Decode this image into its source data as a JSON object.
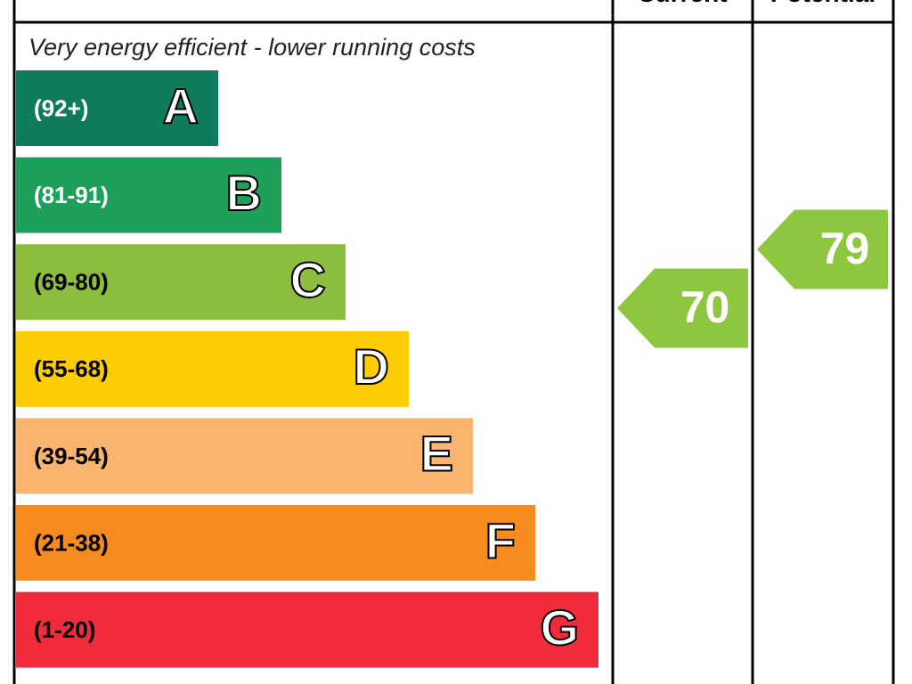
{
  "header": {
    "current": "Current",
    "potential": "Potential"
  },
  "note": "Very energy efficient - lower running costs",
  "bands": [
    {
      "range": "(92+)",
      "letter": "A",
      "color": "#0f7b5c",
      "text_color": "#ffffff"
    },
    {
      "range": "(81-91)",
      "letter": "B",
      "color": "#1ea05a",
      "text_color": "#ffffff"
    },
    {
      "range": "(69-80)",
      "letter": "C",
      "color": "#8dbd3f",
      "text_color": "#000000"
    },
    {
      "range": "(55-68)",
      "letter": "D",
      "color": "#fecc02",
      "text_color": "#000000"
    },
    {
      "range": "(39-54)",
      "letter": "E",
      "color": "#f9b46f",
      "text_color": "#000000"
    },
    {
      "range": "(21-38)",
      "letter": "F",
      "color": "#f68b1f",
      "text_color": "#000000"
    },
    {
      "range": "(1-20)",
      "letter": "G",
      "color": "#ef2b3c",
      "text_color": "#000000"
    }
  ],
  "ratings": {
    "current": 70,
    "potential": 79,
    "color": "#8dc63f"
  }
}
